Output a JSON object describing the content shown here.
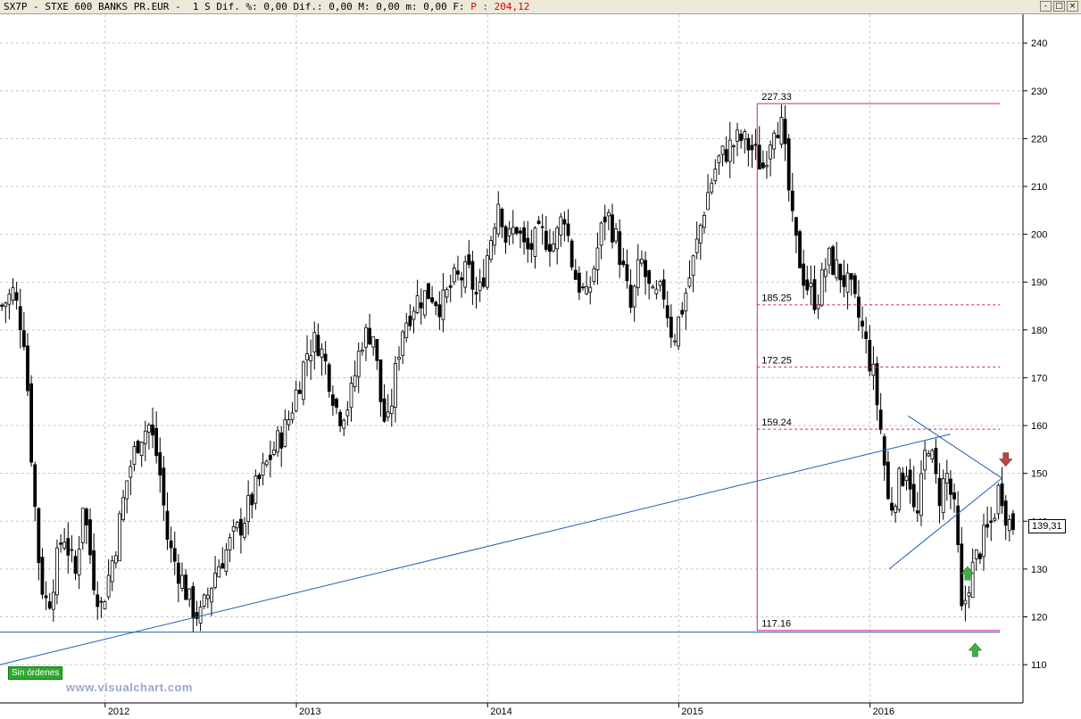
{
  "window": {
    "symbol": "SX7P",
    "title_text": "SX7P - STXE 600 BANKS PR.EUR -  1 S Dif. %: 0,00 Dif.: 0,00 M: 0,00 m: 0,00 F:",
    "price_label": "P : 204,12",
    "buttons": [
      "-",
      "□",
      "×"
    ]
  },
  "brand": "www.visualchart.com",
  "orders_label": "Sin órdenes",
  "last_price": "139,31",
  "colors": {
    "background": "#ffffff",
    "grid": "#c8c8c8",
    "candles": "#000000",
    "trendlines": "#1f5fb4",
    "fibonacci": "#cc2277",
    "arrow_up": "#3cb043",
    "arrow_down": "#b24a4a"
  },
  "chart_data": {
    "type": "candlestick",
    "timeframe": "weekly",
    "ylim": [
      102,
      246
    ],
    "yticks": [
      110,
      120,
      130,
      140,
      150,
      160,
      170,
      180,
      190,
      200,
      210,
      220,
      230,
      240
    ],
    "xlim": [
      2011.45,
      2016.8
    ],
    "xticks": [
      {
        "label": "2012",
        "x": 2012.0
      },
      {
        "label": "2013",
        "x": 2013.0
      },
      {
        "label": "2014",
        "x": 2014.0
      },
      {
        "label": "2015",
        "x": 2015.0
      },
      {
        "label": "2016",
        "x": 2016.0
      }
    ],
    "grid": true,
    "close_anchors": [
      [
        2011.46,
        185
      ],
      [
        2011.52,
        188
      ],
      [
        2011.58,
        178
      ],
      [
        2011.62,
        150
      ],
      [
        2011.66,
        128
      ],
      [
        2011.7,
        122
      ],
      [
        2011.78,
        138
      ],
      [
        2011.85,
        128
      ],
      [
        2011.88,
        145
      ],
      [
        2011.94,
        128
      ],
      [
        2011.98,
        122
      ],
      [
        2012.05,
        134
      ],
      [
        2012.12,
        150
      ],
      [
        2012.18,
        158
      ],
      [
        2012.23,
        160
      ],
      [
        2012.28,
        152
      ],
      [
        2012.33,
        135
      ],
      [
        2012.4,
        128
      ],
      [
        2012.45,
        122
      ],
      [
        2012.5,
        120
      ],
      [
        2012.58,
        130
      ],
      [
        2012.65,
        135
      ],
      [
        2012.72,
        140
      ],
      [
        2012.8,
        148
      ],
      [
        2012.88,
        155
      ],
      [
        2012.95,
        160
      ],
      [
        2013.02,
        170
      ],
      [
        2013.06,
        176
      ],
      [
        2013.11,
        178
      ],
      [
        2013.16,
        172
      ],
      [
        2013.22,
        162
      ],
      [
        2013.28,
        165
      ],
      [
        2013.34,
        178
      ],
      [
        2013.4,
        180
      ],
      [
        2013.45,
        162
      ],
      [
        2013.48,
        160
      ],
      [
        2013.55,
        180
      ],
      [
        2013.62,
        186
      ],
      [
        2013.7,
        188
      ],
      [
        2013.76,
        185
      ],
      [
        2013.82,
        190
      ],
      [
        2013.9,
        192
      ],
      [
        2013.95,
        186
      ],
      [
        2014.02,
        200
      ],
      [
        2014.06,
        208
      ],
      [
        2014.1,
        198
      ],
      [
        2014.15,
        202
      ],
      [
        2014.2,
        196
      ],
      [
        2014.28,
        200
      ],
      [
        2014.35,
        198
      ],
      [
        2014.4,
        205
      ],
      [
        2014.45,
        192
      ],
      [
        2014.52,
        186
      ],
      [
        2014.58,
        198
      ],
      [
        2014.62,
        205
      ],
      [
        2014.68,
        198
      ],
      [
        2014.75,
        184
      ],
      [
        2014.8,
        195
      ],
      [
        2014.86,
        186
      ],
      [
        2014.92,
        188
      ],
      [
        2014.97,
        178
      ],
      [
        2015.02,
        185
      ],
      [
        2015.08,
        195
      ],
      [
        2015.14,
        207
      ],
      [
        2015.2,
        215
      ],
      [
        2015.26,
        218
      ],
      [
        2015.32,
        220
      ],
      [
        2015.38,
        218
      ],
      [
        2015.44,
        214
      ],
      [
        2015.5,
        224
      ],
      [
        2015.54,
        222
      ],
      [
        2015.6,
        200
      ],
      [
        2015.66,
        190
      ],
      [
        2015.72,
        186
      ],
      [
        2015.78,
        195
      ],
      [
        2015.84,
        192
      ],
      [
        2015.9,
        188
      ],
      [
        2015.96,
        180
      ],
      [
        2016.02,
        170
      ],
      [
        2016.06,
        158
      ],
      [
        2016.1,
        142
      ],
      [
        2016.15,
        148
      ],
      [
        2016.2,
        152
      ],
      [
        2016.24,
        138
      ],
      [
        2016.3,
        158
      ],
      [
        2016.36,
        145
      ],
      [
        2016.4,
        150
      ],
      [
        2016.45,
        140
      ],
      [
        2016.48,
        120
      ],
      [
        2016.52,
        128
      ],
      [
        2016.58,
        135
      ],
      [
        2016.64,
        140
      ],
      [
        2016.68,
        148
      ],
      [
        2016.72,
        140
      ],
      [
        2016.75,
        139.31
      ]
    ],
    "fibonacci": {
      "x_start": 2015.41,
      "x_end": 2016.68,
      "levels": [
        {
          "label": "227.33",
          "value": 227.33
        },
        {
          "label": "185.25",
          "value": 185.25
        },
        {
          "label": "172.25",
          "value": 172.25
        },
        {
          "label": "159.24",
          "value": 159.24
        },
        {
          "label": "117.16",
          "value": 117.16
        }
      ]
    },
    "trendlines": [
      {
        "x1": 2011.45,
        "y1": 110,
        "x2": 2016.42,
        "y2": 158.2
      },
      {
        "x1": 2011.45,
        "y1": 116.8,
        "x2": 2016.68,
        "y2": 116.8
      },
      {
        "x1": 2016.2,
        "y1": 162,
        "x2": 2016.69,
        "y2": 149
      },
      {
        "x1": 2016.1,
        "y1": 130,
        "x2": 2016.69,
        "y2": 149
      }
    ],
    "markers": [
      {
        "type": "arrow-up",
        "x": 2016.51,
        "y": 129
      },
      {
        "type": "arrow-up",
        "x": 2016.55,
        "y": 113
      },
      {
        "type": "arrow-down",
        "x": 2016.71,
        "y": 153
      }
    ]
  }
}
